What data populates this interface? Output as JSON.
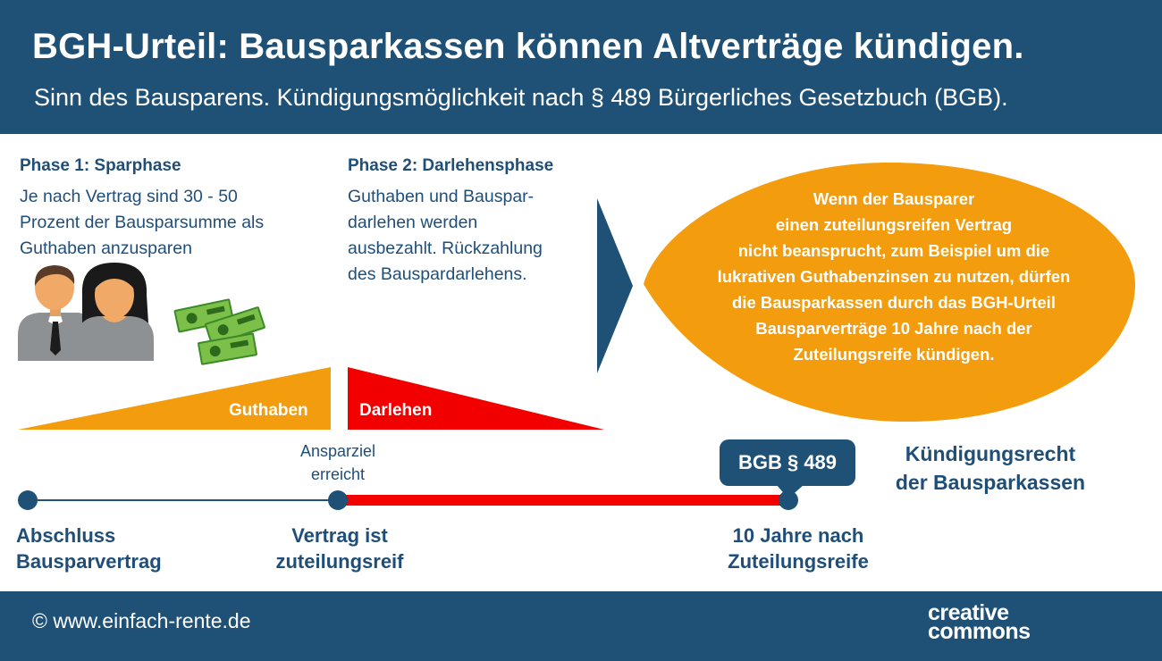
{
  "header": {
    "title": "BGH-Urteil: Bausparkassen können Altverträge kündigen.",
    "subtitle": "Sinn des Bausparens. Kündigungsmöglichkeit nach § 489 Bürgerliches Gesetzbuch (BGB)."
  },
  "phase1": {
    "title": "Phase 1: Sparphase",
    "lines": [
      "Je nach Vertrag sind 30 - 50",
      "Prozent der Bausparsumme als",
      "Guthaben anzusparen"
    ]
  },
  "phase2": {
    "title": "Phase 2: Darlehensphase",
    "lines": [
      "Guthaben und Bauspar-",
      "darlehen werden",
      "ausbezahlt. Rückzahlung",
      "des Bauspardarlehens."
    ]
  },
  "bubble": {
    "lines": [
      "Wenn der Bausparer",
      "einen zuteilungsreifen Vertrag",
      "nicht beansprucht, zum Beispiel um die",
      "lukrativen Guthabenzinsen zu nutzen, dürfen",
      "die Bausparkassen durch das BGH-Urteil",
      "Bausparverträge 10 Jahre nach der",
      "Zuteilungsreife kündigen."
    ]
  },
  "triangles": {
    "guthaben": "Guthaben",
    "darlehen": "Darlehen"
  },
  "timeline": {
    "start": [
      "Abschluss",
      "Bausparvertrag"
    ],
    "milestone_top": [
      "Ansparziel",
      "erreicht"
    ],
    "middle": [
      "Vertrag ist",
      "zuteilungsreif"
    ],
    "end": [
      "10 Jahre nach",
      "Zuteilungsreife"
    ],
    "bgb_label": "BGB § 489",
    "right": [
      "Kündigungsrecht",
      "der Bausparkassen"
    ]
  },
  "footer": {
    "copyright": "© www.einfach-rente.de",
    "cc_line1": "creative",
    "cc_line2": "commons"
  },
  "colors": {
    "navy": "#1f5177",
    "orange": "#f39c0d",
    "red": "#f20000",
    "text_blue": "#1f4e79"
  }
}
